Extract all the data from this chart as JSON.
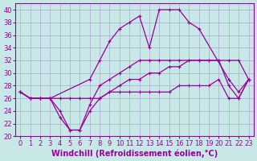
{
  "xlabel": "Windchill (Refroidissement éolien,°C)",
  "bg_color": "#c8e8e8",
  "line_color": "#990099",
  "grid_color": "#aaaacc",
  "xlim": [
    -0.5,
    23.5
  ],
  "ylim": [
    20,
    41
  ],
  "xticks": [
    0,
    1,
    2,
    3,
    4,
    5,
    6,
    7,
    8,
    9,
    10,
    11,
    12,
    13,
    14,
    15,
    16,
    17,
    18,
    19,
    20,
    21,
    22,
    23
  ],
  "yticks": [
    20,
    22,
    24,
    26,
    28,
    30,
    32,
    34,
    36,
    38,
    40
  ],
  "series_top_x": [
    0,
    1,
    2,
    3,
    7,
    8,
    9,
    10,
    11,
    12,
    13,
    14,
    15,
    16,
    17,
    18,
    21,
    22,
    23
  ],
  "series_top_y": [
    27,
    26,
    26,
    26,
    29,
    32,
    35,
    37,
    38,
    39,
    34,
    40,
    40,
    40,
    38,
    37,
    29,
    27,
    29
  ],
  "series_mid_x": [
    0,
    1,
    2,
    3,
    4,
    5,
    6,
    7,
    8,
    9,
    10,
    11,
    12,
    13,
    14,
    15,
    16,
    17,
    18,
    19,
    20,
    21,
    22,
    23
  ],
  "series_mid_y": [
    27,
    26,
    26,
    26,
    26,
    26,
    26,
    26,
    26,
    27,
    28,
    29,
    29,
    30,
    30,
    31,
    31,
    32,
    32,
    32,
    32,
    32,
    32,
    29
  ],
  "series_low_x": [
    0,
    1,
    2,
    3,
    4,
    5,
    6,
    7,
    8,
    9,
    10,
    11,
    12,
    13,
    14,
    15,
    16,
    17,
    18,
    19,
    20,
    21,
    22,
    23
  ],
  "series_low_y": [
    27,
    26,
    26,
    26,
    24,
    21,
    21,
    25,
    28,
    29,
    30,
    31,
    32,
    32,
    32,
    32,
    32,
    32,
    32,
    32,
    32,
    28,
    26,
    29
  ],
  "series_flat_x": [
    0,
    1,
    2,
    3,
    4,
    5,
    6,
    7,
    8,
    9,
    10,
    11,
    12,
    13,
    14,
    15,
    16,
    17,
    18,
    19,
    20,
    21,
    22,
    23
  ],
  "series_flat_y": [
    27,
    26,
    26,
    26,
    23,
    21,
    21,
    24,
    26,
    27,
    27,
    27,
    27,
    27,
    27,
    27,
    28,
    28,
    28,
    28,
    29,
    26,
    26,
    29
  ],
  "font_size": 7,
  "tick_font_size": 6
}
